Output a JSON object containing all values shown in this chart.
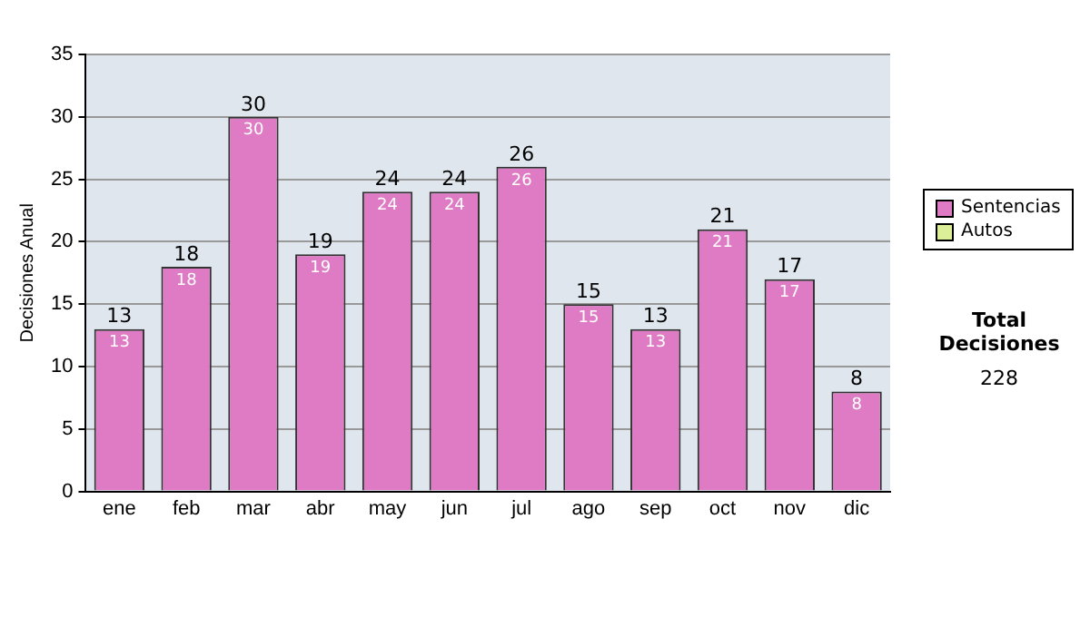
{
  "chart_data": {
    "type": "bar",
    "ylabel": "Decisiones Anual",
    "categories": [
      "ene",
      "feb",
      "mar",
      "abr",
      "may",
      "jun",
      "jul",
      "ago",
      "sep",
      "oct",
      "nov",
      "dic"
    ],
    "stacked": true,
    "series": [
      {
        "name": "Sentencias",
        "color": "#de7bc4",
        "values": [
          13,
          18,
          30,
          19,
          24,
          24,
          26,
          15,
          13,
          21,
          17,
          8
        ],
        "value_labels": [
          "13",
          "18",
          "30",
          "19",
          "24",
          "24",
          "26",
          "15",
          "13",
          "21",
          "17",
          "8"
        ]
      },
      {
        "name": "Autos",
        "color": "#ddee99",
        "values": [
          0,
          0,
          0,
          0,
          0,
          0,
          0,
          0,
          0,
          0,
          0,
          0
        ]
      }
    ],
    "totals": [
      "13",
      "18",
      "30",
      "19",
      "24",
      "24",
      "26",
      "15",
      "13",
      "21",
      "17",
      "8"
    ],
    "ylim": [
      0,
      35
    ],
    "yticks": [
      0,
      5,
      10,
      15,
      20,
      25,
      30,
      35
    ],
    "grid": "y",
    "legend": "right",
    "annotations": [
      "Total Decisiones",
      "228"
    ]
  }
}
